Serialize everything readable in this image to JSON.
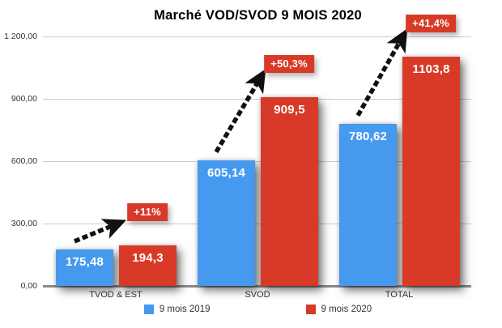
{
  "title": "Marché VOD/SVOD 9 MOIS 2020",
  "colors": {
    "series_2019": "#459AF0",
    "series_2020": "#D83A27",
    "badge_background": "#D83A27",
    "badge_text": "#ffffff",
    "arrow": "#111111",
    "gridline": "#cccccc",
    "axis_line": "#8a8a8a",
    "axis_text": "#333333",
    "title_text": "#000000",
    "bar_value_text": "#ffffff"
  },
  "chart_data": {
    "type": "bar",
    "title": "Marché VOD/SVOD 9 MOIS 2020",
    "xlabel": "",
    "ylabel": "",
    "ylim": [
      0,
      1200
    ],
    "grid": true,
    "legend_position": "bottom",
    "categories": [
      "TVOD & EST",
      "SVOD",
      "TOTAL"
    ],
    "series": [
      {
        "name": "9 mois 2019",
        "color": "#459AF0",
        "values": [
          175.48,
          605.14,
          780.62
        ],
        "labels": [
          "175,48",
          "605,14",
          "780,62"
        ]
      },
      {
        "name": "9 mois 2020",
        "color": "#D83A27",
        "values": [
          194.3,
          909.5,
          1103.8
        ],
        "labels": [
          "194,3",
          "909,5",
          "1103,8"
        ]
      }
    ],
    "growth_annotations": [
      "+11%",
      "+50,3%",
      "+41,4%"
    ],
    "y_ticks": [
      {
        "value": 0,
        "label": "0,00"
      },
      {
        "value": 300,
        "label": "300,00"
      },
      {
        "value": 600,
        "label": "600,00"
      },
      {
        "value": 900,
        "label": "900,00"
      },
      {
        "value": 1200,
        "label": "1 200,00"
      }
    ]
  }
}
